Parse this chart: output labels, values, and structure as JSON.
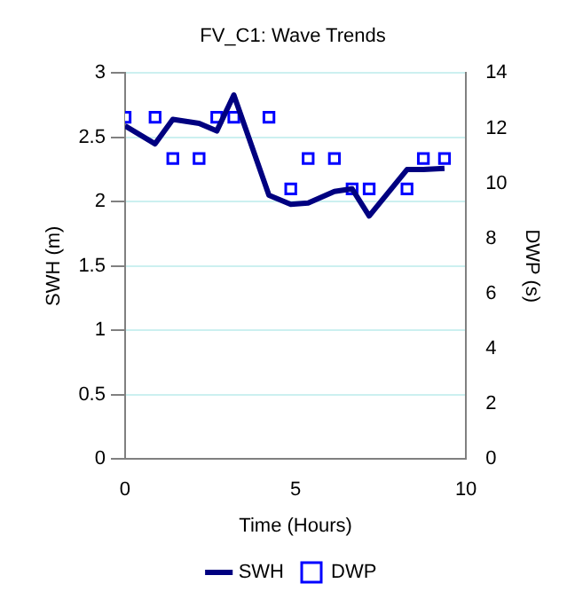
{
  "chart_data": {
    "type": "line",
    "title": "FV_C1: Wave Trends",
    "xlabel": "Time (Hours)",
    "ylabel": "SWH (m)",
    "y2label": "DWP (s)",
    "x": [
      0,
      0.88,
      1.4,
      2.17,
      2.69,
      3.19,
      4.22,
      4.86,
      5.37,
      6.14,
      6.66,
      7.16,
      8.27,
      8.75,
      9.37
    ],
    "series": [
      {
        "name": "SWH",
        "type": "line",
        "color": "#000080",
        "marker": "none",
        "values": [
          2.59,
          2.45,
          2.64,
          2.61,
          2.55,
          2.83,
          2.05,
          1.98,
          1.99,
          2.08,
          2.1,
          1.89,
          2.25,
          2.25,
          2.26
        ]
      },
      {
        "name": "DWP",
        "type": "scatter",
        "axis": "y2",
        "color": "#0000ff",
        "marker": "square",
        "values": [
          12.4,
          12.4,
          10.9,
          10.9,
          12.4,
          12.4,
          12.4,
          9.8,
          10.9,
          10.9,
          9.8,
          9.8,
          9.8,
          10.9,
          10.9
        ]
      }
    ],
    "xlim": [
      0,
      10
    ],
    "xticks": [
      0,
      5,
      10
    ],
    "ylim": [
      0,
      3
    ],
    "yticks": [
      0,
      0.5,
      1,
      1.5,
      2,
      2.5,
      3
    ],
    "y2lim": [
      0,
      14
    ],
    "y2ticks": [
      0,
      2,
      4,
      6,
      8,
      10,
      12,
      14
    ],
    "grid": "y",
    "legend": "bottom"
  }
}
